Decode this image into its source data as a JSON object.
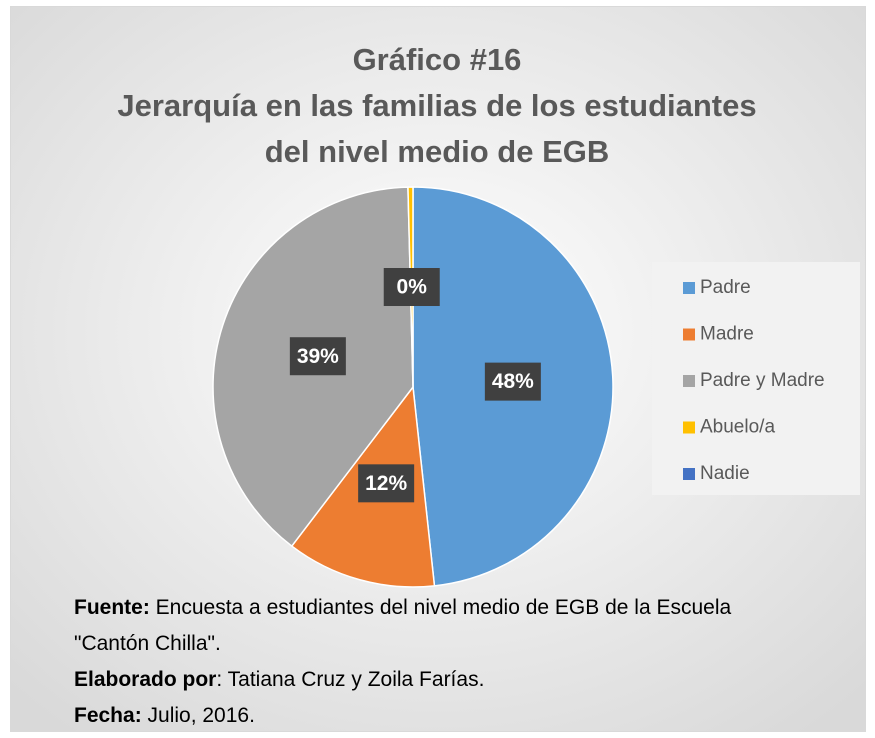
{
  "chart_data": {
    "type": "pie",
    "title_lines": [
      "Gráfico #16",
      "Jerarquía en las familias de los estudiantes",
      "del nivel medio de EGB"
    ],
    "categories": [
      "Padre",
      "Madre",
      "Padre y Madre",
      "Abuelo/a",
      "Nadie"
    ],
    "values": [
      48,
      12,
      39,
      0.4,
      0
    ],
    "value_labels": [
      "48%",
      "12%",
      "39%",
      "0%",
      null
    ],
    "colors": [
      "#5b9bd5",
      "#ed7d31",
      "#a5a5a5",
      "#ffc000",
      "#4472c4"
    ],
    "legend": "right"
  },
  "footer": {
    "source_label": "Fuente:",
    "source_text": " Encuesta a estudiantes del nivel medio de EGB de la Escuela \"Cantón Chilla\".",
    "author_label": "Elaborado por",
    "author_text": ": Tatiana Cruz y Zoila Farías.",
    "date_label": "Fecha:",
    "date_text": " Julio, 2016."
  }
}
